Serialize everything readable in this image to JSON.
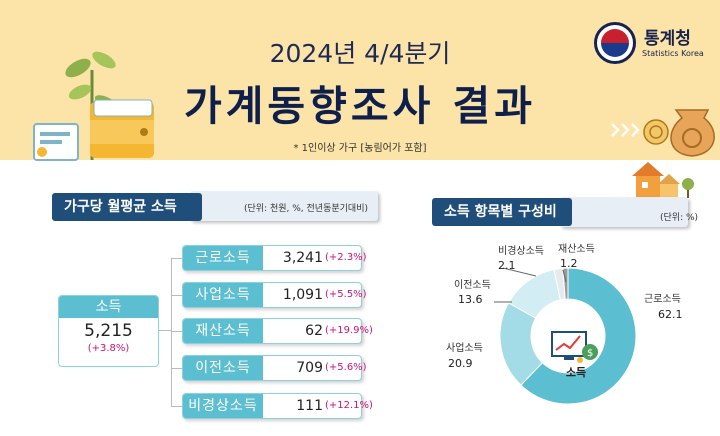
{
  "header": {
    "subtitle": "2024년 4/4분기",
    "title": "가계동향조사 결과",
    "note": "* 1인이상 가구 [농림어가 포함]"
  },
  "logo": {
    "ko": "통계청",
    "en": "Statistics Korea"
  },
  "left_section": {
    "title": "가구당 월평균 소득",
    "unit": "(단위: 천원, %, 전년동분기대비)",
    "total": {
      "label": "소득",
      "value": "5,215",
      "change": "(+3.8%)"
    },
    "items": [
      {
        "label": "근로소득",
        "value": "3,241",
        "change": "(+2.3%)"
      },
      {
        "label": "사업소득",
        "value": "1,091",
        "change": "(+5.5%)"
      },
      {
        "label": "재산소득",
        "value": "62",
        "change": "(+19.9%)"
      },
      {
        "label": "이전소득",
        "value": "709",
        "change": "(+5.6%)"
      },
      {
        "label": "비경상소득",
        "value": "111",
        "change": "(+12.1%)"
      }
    ]
  },
  "right_section": {
    "title": "소득 항목별 구성비",
    "unit": "(단위: %)",
    "center": "소득"
  },
  "chart_data": {
    "type": "pie",
    "slices": [
      {
        "label": "근로소득",
        "value": 62.1,
        "color": "#5bbfd1"
      },
      {
        "label": "사업소득",
        "value": 20.9,
        "color": "#a3dbe6"
      },
      {
        "label": "이전소득",
        "value": 13.6,
        "color": "#d2edf3"
      },
      {
        "label": "비경상소득",
        "value": 2.1,
        "color": "#e6eaec"
      },
      {
        "label": "재산소득",
        "value": 1.2,
        "color": "#9a9a9a"
      }
    ],
    "value_labels": [
      "62.1",
      "20.9",
      "13.6",
      "2.1",
      "1.2"
    ]
  },
  "colors": {
    "accent": "#5bbfd1",
    "navy": "#1f4e7a",
    "change": "#c8137a",
    "header_bg": "#fce4a8"
  }
}
